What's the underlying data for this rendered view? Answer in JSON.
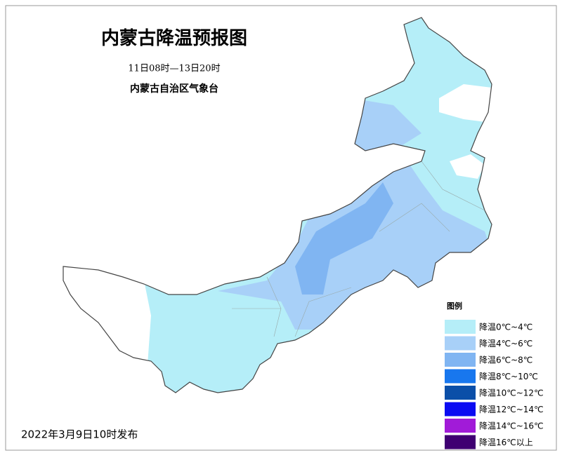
{
  "header": {
    "title": "内蒙古降温预报图",
    "period": "11日08时—13日20时",
    "issuer": "内蒙古自治区气象台"
  },
  "legend": {
    "title": "图例",
    "items": [
      {
        "label": "降温0℃~4℃",
        "color": "#b5eef8"
      },
      {
        "label": "降温4℃~6℃",
        "color": "#a8d0f8"
      },
      {
        "label": "降温6℃~8℃",
        "color": "#80b5f2"
      },
      {
        "label": "降温8℃~10℃",
        "color": "#1877ee"
      },
      {
        "label": "降温10℃~12℃",
        "color": "#0b4fa8"
      },
      {
        "label": "降温12℃~14℃",
        "color": "#0b0bf2"
      },
      {
        "label": "降温14℃~16℃",
        "color": "#a11bd8"
      },
      {
        "label": "降温16℃以上",
        "color": "#3f0072"
      }
    ]
  },
  "footer": {
    "issued": "2022年3月9日10时发布"
  }
}
